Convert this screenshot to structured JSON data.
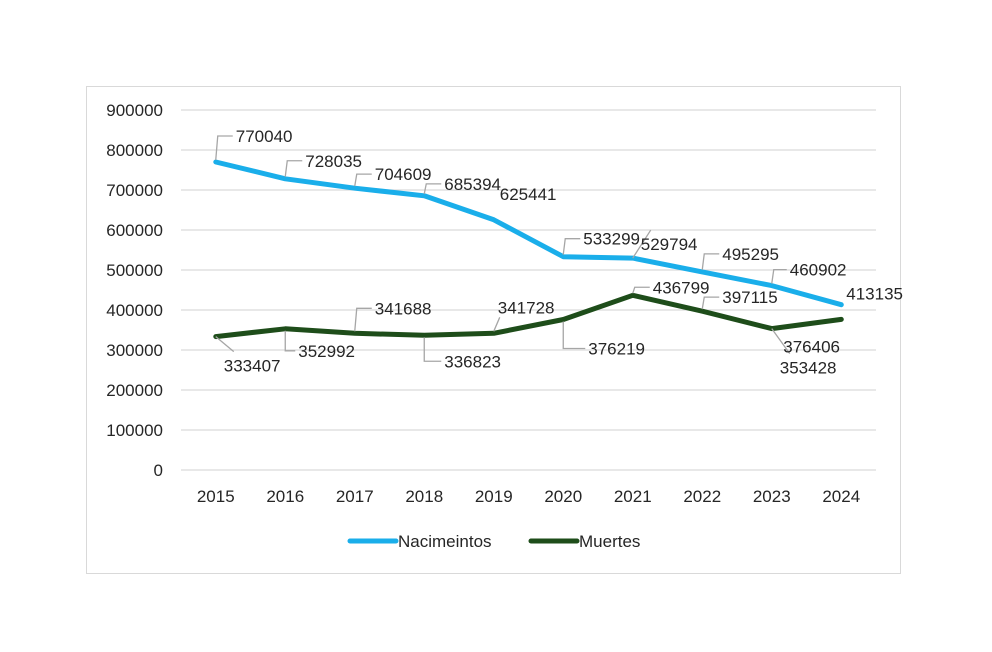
{
  "chart_data": {
    "type": "line",
    "title": "",
    "xlabel": "",
    "ylabel": "",
    "categories": [
      "2015",
      "2016",
      "2017",
      "2018",
      "2019",
      "2020",
      "2021",
      "2022",
      "2023",
      "2024"
    ],
    "ylim": [
      0,
      900000
    ],
    "yticks": [
      0,
      100000,
      200000,
      300000,
      400000,
      500000,
      600000,
      700000,
      800000,
      900000
    ],
    "ytick_labels": [
      "0",
      "100000",
      "200000",
      "300000",
      "400000",
      "500000",
      "600000",
      "700000",
      "800000",
      "900000"
    ],
    "grid": true,
    "legend_position": "bottom",
    "series": [
      {
        "name": "Nacimeintos",
        "color": "#1aaeea",
        "values": [
          770040,
          728035,
          704609,
          685394,
          625441,
          533299,
          529794,
          495295,
          460902,
          413135
        ],
        "labels": [
          "770040",
          "728035",
          "704609",
          "685394",
          "625441",
          "533299",
          "529794",
          "495295",
          "460902",
          "413135"
        ]
      },
      {
        "name": "Muertes",
        "color": "#1e4d1a",
        "values": [
          333407,
          352992,
          341688,
          336823,
          341728,
          376219,
          436799,
          397115,
          353428,
          376406
        ],
        "labels": [
          "333407",
          "352992",
          "341688",
          "336823",
          "341728",
          "376219",
          "436799",
          "397115",
          "353428",
          "376406"
        ]
      }
    ]
  }
}
